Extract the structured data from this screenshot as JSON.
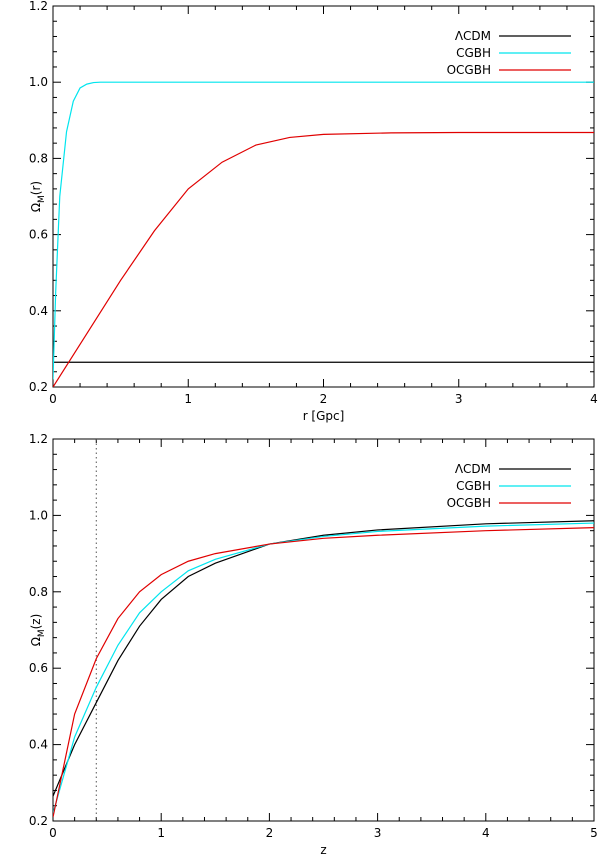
{
  "chart_data": [
    {
      "type": "line",
      "xlabel": "r [Gpc]",
      "ylabel_main": "Ω",
      "ylabel_sub": "M",
      "ylabel_tail": "(r)",
      "xlim": [
        0,
        4
      ],
      "ylim": [
        0.2,
        1.2
      ],
      "xticks": [
        "0",
        "1",
        "2",
        "3",
        "4"
      ],
      "yticks": [
        "0.2",
        "0.4",
        "0.6",
        "0.8",
        "1.0",
        "1.2"
      ],
      "legend_position": "top-right",
      "series": [
        {
          "name": "ΛCDM",
          "color": "#000000",
          "x": [
            0,
            4
          ],
          "y": [
            0.265,
            0.265
          ]
        },
        {
          "name": "CGBH",
          "color": "#00e5ee",
          "x": [
            0,
            0.02,
            0.05,
            0.1,
            0.15,
            0.2,
            0.25,
            0.3,
            0.35,
            0.4,
            0.5,
            1,
            2,
            3,
            4
          ],
          "y": [
            0.22,
            0.45,
            0.7,
            0.87,
            0.95,
            0.985,
            0.995,
            0.999,
            1.0,
            1.0,
            1.0,
            1.0,
            1.0,
            1.0,
            1.0
          ]
        },
        {
          "name": "OCGBH",
          "color": "#e00000",
          "x": [
            0,
            0.25,
            0.5,
            0.75,
            1.0,
            1.25,
            1.5,
            1.75,
            2.0,
            2.5,
            3.0,
            3.5,
            4.0
          ],
          "y": [
            0.2,
            0.34,
            0.48,
            0.61,
            0.72,
            0.79,
            0.835,
            0.855,
            0.863,
            0.867,
            0.868,
            0.868,
            0.868
          ]
        }
      ]
    },
    {
      "type": "line",
      "xlabel": "z",
      "ylabel_main": "Ω",
      "ylabel_sub": "M",
      "ylabel_tail": "(z)",
      "xlim": [
        0,
        5
      ],
      "ylim": [
        0.2,
        1.2
      ],
      "xticks": [
        "0",
        "1",
        "2",
        "3",
        "4",
        "5"
      ],
      "yticks": [
        "0.2",
        "0.4",
        "0.6",
        "0.8",
        "1.0",
        "1.2"
      ],
      "legend_position": "top-right",
      "vline_x": 0.4,
      "series": [
        {
          "name": "ΛCDM",
          "color": "#000000",
          "x": [
            0,
            0.2,
            0.4,
            0.6,
            0.8,
            1.0,
            1.25,
            1.5,
            2.0,
            2.5,
            3.0,
            4.0,
            5.0
          ],
          "y": [
            0.265,
            0.4,
            0.51,
            0.62,
            0.71,
            0.78,
            0.84,
            0.875,
            0.925,
            0.948,
            0.962,
            0.978,
            0.986
          ]
        },
        {
          "name": "CGBH",
          "color": "#00e5ee",
          "x": [
            0,
            0.2,
            0.4,
            0.6,
            0.8,
            1.0,
            1.25,
            1.5,
            2.0,
            2.5,
            3.0,
            4.0,
            5.0
          ],
          "y": [
            0.22,
            0.42,
            0.55,
            0.66,
            0.745,
            0.8,
            0.855,
            0.885,
            0.925,
            0.945,
            0.958,
            0.972,
            0.98
          ]
        },
        {
          "name": "OCGBH",
          "color": "#e00000",
          "x": [
            0,
            0.2,
            0.4,
            0.6,
            0.8,
            1.0,
            1.25,
            1.5,
            2.0,
            2.5,
            3.0,
            4.0,
            5.0
          ],
          "y": [
            0.21,
            0.48,
            0.625,
            0.73,
            0.8,
            0.845,
            0.88,
            0.9,
            0.925,
            0.94,
            0.948,
            0.96,
            0.968
          ]
        }
      ]
    }
  ]
}
